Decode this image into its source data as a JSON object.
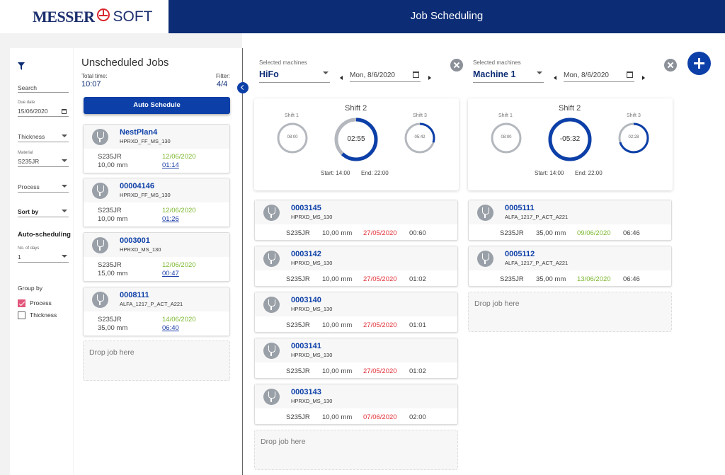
{
  "header": {
    "logo_left": "MESSER",
    "logo_right": "SOFT",
    "title": "Job Scheduling"
  },
  "filters": {
    "search_label": "Search",
    "due_date_label": "Due date",
    "due_date_value": "15/06/2020",
    "thickness_label": "Thickness",
    "material_label": "Material",
    "material_value": "S235JR",
    "process_label": "Process",
    "sort_by_label": "Sort by",
    "auto_scheduling_label": "Auto-scheduling",
    "no_of_days_label": "No. of days",
    "no_of_days_value": "1",
    "group_by_label": "Group by",
    "group_by_options": [
      {
        "label": "Process",
        "checked": true
      },
      {
        "label": "Thickness",
        "checked": false
      }
    ]
  },
  "unscheduled": {
    "title": "Unscheduled Jobs",
    "total_time_label": "Total time:",
    "total_time_value": "10:07",
    "filter_label": "Filter:",
    "filter_value": "4/4",
    "auto_schedule_label": "Auto Schedule",
    "drop_label": "Drop job here",
    "jobs": [
      {
        "id": "NestPlan4",
        "program": "HPRXD_FF_MS_130",
        "material": "S235JR",
        "date": "12/06/2020",
        "thickness": "10,00 mm",
        "time": "01:14"
      },
      {
        "id": "00004146",
        "program": "HPRXD_FF_MS_130",
        "material": "S235JR",
        "date": "12/06/2020",
        "thickness": "10,00 mm",
        "time": "01:26"
      },
      {
        "id": "0003001",
        "program": "HPRXD_MS_130",
        "material": "S235JR",
        "date": "12/06/2020",
        "thickness": "15,00 mm",
        "time": "00:47"
      },
      {
        "id": "0008111",
        "program": "ALFA_1217_P_ACT_A221",
        "material": "S235JR",
        "date": "14/06/2020",
        "thickness": "35,00 mm",
        "time": "06:40"
      }
    ]
  },
  "machines": [
    {
      "selected_label": "Selected machines",
      "name": "HiFo",
      "date": "Mon, 8/6/2020",
      "shifts": [
        {
          "name": "Shift 1",
          "time": "08:00",
          "fill": 0
        },
        {
          "name": "Shift 2",
          "time": "02:55",
          "fill": 0.62
        },
        {
          "name": "Shift 3",
          "time": "05:42",
          "fill": 0.3
        }
      ],
      "start_text": "Start: 14:00",
      "end_text": "End: 22:00",
      "drop_label": "Drop job here",
      "jobs": [
        {
          "id": "0003145",
          "program": "HPRXD_MS_130",
          "material": "S235JR",
          "thickness": "10,00 mm",
          "date": "27/05/2020",
          "date_color": "red",
          "time": "00:60"
        },
        {
          "id": "0003142",
          "program": "HPRXD_MS_130",
          "material": "S235JR",
          "thickness": "10,00 mm",
          "date": "27/05/2020",
          "date_color": "red",
          "time": "01:02"
        },
        {
          "id": "0003140",
          "program": "HPRXD_MS_130",
          "material": "S235JR",
          "thickness": "10,00 mm",
          "date": "27/05/2020",
          "date_color": "red",
          "time": "01:01"
        },
        {
          "id": "0003141",
          "program": "HPRXD_MS_130",
          "material": "S235JR",
          "thickness": "10,00 mm",
          "date": "27/05/2020",
          "date_color": "red",
          "time": "01:02"
        },
        {
          "id": "0003143",
          "program": "HPRXD_MS_130",
          "material": "S235JR",
          "thickness": "10,00 mm",
          "date": "07/06/2020",
          "date_color": "red",
          "time": "02:00"
        }
      ]
    },
    {
      "selected_label": "Selected machines",
      "name": "Machine 1",
      "date": "Mon, 8/6/2020",
      "shifts": [
        {
          "name": "Shift 1",
          "time": "08:00",
          "fill": 0
        },
        {
          "name": "Shift 2",
          "time": "-05:32",
          "fill": 1
        },
        {
          "name": "Shift 3",
          "time": "02:28",
          "fill": 0.7
        }
      ],
      "start_text": "Start: 14:00",
      "end_text": "End: 22:00",
      "drop_label": "Drop job here",
      "jobs": [
        {
          "id": "0005111",
          "program": "ALFA_1217_P_ACT_A221",
          "material": "S235JR",
          "thickness": "35,00 mm",
          "date": "09/06/2020",
          "date_color": "green",
          "time": "06:46"
        },
        {
          "id": "0005112",
          "program": "ALFA_1217_P_ACT_A221",
          "material": "S235JR",
          "thickness": "35,00 mm",
          "date": "13/06/2020",
          "date_color": "green",
          "time": "06:46"
        }
      ]
    }
  ],
  "colors": {
    "brand": "#0c2d75",
    "accent": "#0c3fa8",
    "ring_track": "#b4b8be",
    "overdue": "#e0333a",
    "ontime": "#7cb82f"
  }
}
